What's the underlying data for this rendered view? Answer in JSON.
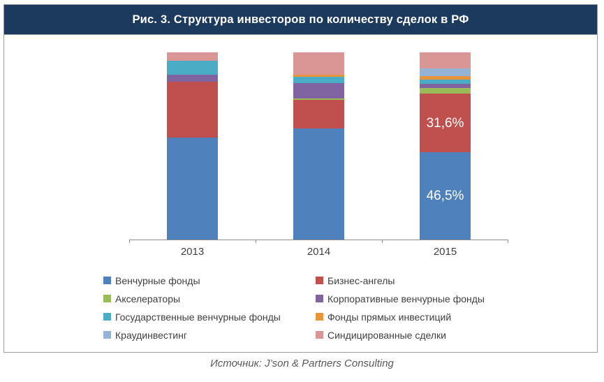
{
  "header": {
    "title": "Рис. 3. Структура инвесторов по количеству сделок в РФ",
    "background": "#1c3a5e",
    "text_color": "#ffffff"
  },
  "source": {
    "text": "Источник: J’son & Partners Consulting"
  },
  "chart_data": {
    "type": "bar",
    "variant": "stacked-100-percent",
    "unit": "percent",
    "title": "Рис. 3. Структура инвесторов по количеству сделок в РФ",
    "categories": [
      "2013",
      "2014",
      "2015"
    ],
    "series": [
      {
        "name": "Венчурные фонды",
        "color": "#4f81bd",
        "values": [
          54.5,
          59.3,
          46.5
        ],
        "labels": [
          null,
          null,
          "46,5%"
        ]
      },
      {
        "name": "Бизнес-ангелы",
        "color": "#c0504d",
        "values": [
          29.8,
          15.3,
          31.6
        ],
        "labels": [
          null,
          null,
          "31,6%"
        ]
      },
      {
        "name": "Акселераторы",
        "color": "#9bbb59",
        "values": [
          0,
          0.7,
          2.9
        ],
        "labels": [
          null,
          null,
          null
        ]
      },
      {
        "name": "Корпоративные венчурные фонды",
        "color": "#8064a2",
        "values": [
          3.7,
          8.2,
          2.4
        ],
        "labels": [
          null,
          null,
          null
        ]
      },
      {
        "name": "Государственные венчурные фонды",
        "color": "#4bacc6",
        "values": [
          7.5,
          3.4,
          1.9
        ],
        "labels": [
          null,
          null,
          null
        ]
      },
      {
        "name": "Фонды прямых инвестиций",
        "color": "#e8943a",
        "values": [
          0,
          1.1,
          2.0
        ],
        "labels": [
          null,
          null,
          null
        ]
      },
      {
        "name": "Краудинвестинг",
        "color": "#95b3d7",
        "values": [
          0,
          0,
          4.0
        ],
        "labels": [
          null,
          null,
          null
        ]
      },
      {
        "name": "Синдицированные сделки",
        "color": "#d99694",
        "values": [
          4.5,
          11.9,
          8.7
        ],
        "labels": [
          null,
          null,
          null
        ]
      }
    ],
    "ylim": [
      0,
      100
    ],
    "grid": false,
    "y_axis_visible": false,
    "legend_position": "bottom",
    "value_label_color": "#ffffff",
    "axis_color": "#8c8c8c",
    "xlabel": "",
    "ylabel": ""
  }
}
